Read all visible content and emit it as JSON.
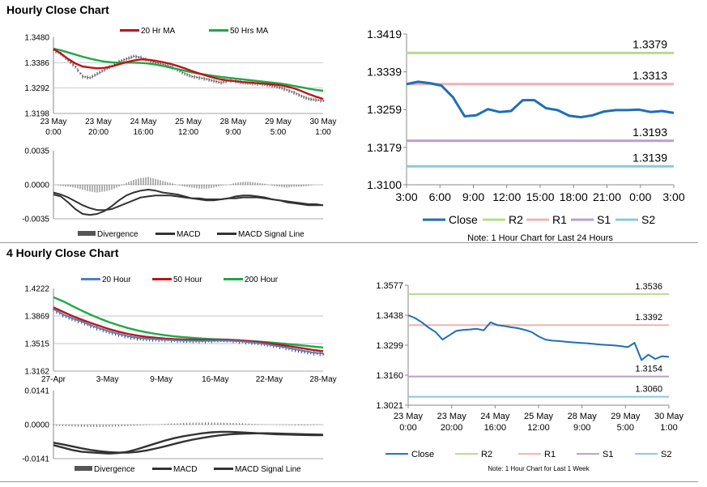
{
  "sections": {
    "hourly_title": "Hourly Close Chart",
    "four_hourly_title": "4 Hourly Close Chart"
  },
  "colors": {
    "close": "#1f6fb4",
    "ma_red": "#c0141b",
    "ma_green": "#1fa846",
    "ma_blue": "#4f81bd",
    "r2": "#b9d98c",
    "r1": "#eeb3b1",
    "s1": "#b5a2cc",
    "s2": "#8cc8dc",
    "divergence": "#555555",
    "grid": "#b0b0b0"
  },
  "chart_data": [
    {
      "id": "hourly_price",
      "type": "line",
      "title": "",
      "x_ticks": [
        "23 May\n0:00",
        "23 May\n20:00",
        "24 May\n16:00",
        "25 May\n12:00",
        "28 May\n9:00",
        "29 May\n5:00",
        "30 May\n1:00"
      ],
      "y_ticks": [
        "1.3480",
        "1.3386",
        "1.3292",
        "1.3198"
      ],
      "ylim": [
        1.3198,
        1.348
      ],
      "legend": [
        "20 Hr MA",
        "50 Hrs MA"
      ],
      "series": [
        {
          "name": "Close",
          "style": "hlc",
          "values": [
            1.3432,
            1.342,
            1.3395,
            1.337,
            1.3335,
            1.333,
            1.3345,
            1.336,
            1.3375,
            1.339,
            1.34,
            1.341,
            1.3405,
            1.3395,
            1.3385,
            1.338,
            1.3372,
            1.336,
            1.3345,
            1.3335,
            1.333,
            1.3325,
            1.3318,
            1.3312,
            1.332,
            1.3318,
            1.3312,
            1.331,
            1.3308,
            1.3305,
            1.33,
            1.3295,
            1.3285,
            1.3275,
            1.3262,
            1.3252,
            1.3248,
            1.3245
          ]
        },
        {
          "name": "20 Hr MA",
          "values": [
            1.3437,
            1.342,
            1.34,
            1.3383,
            1.3372,
            1.3368,
            1.3365,
            1.3367,
            1.3372,
            1.338,
            1.3388,
            1.3394,
            1.3398,
            1.3397,
            1.3393,
            1.3388,
            1.3382,
            1.3374,
            1.3365,
            1.3355,
            1.3346,
            1.3338,
            1.333,
            1.3324,
            1.332,
            1.3317,
            1.3314,
            1.3312,
            1.331,
            1.3308,
            1.3306,
            1.3303,
            1.3298,
            1.3291,
            1.3281,
            1.327,
            1.326,
            1.3252
          ]
        },
        {
          "name": "50 Hrs MA",
          "values": [
            1.3438,
            1.3432,
            1.3424,
            1.3416,
            1.3408,
            1.3401,
            1.3395,
            1.339,
            1.3387,
            1.3386,
            1.3386,
            1.3386,
            1.3385,
            1.3383,
            1.3379,
            1.3374,
            1.3368,
            1.3362,
            1.3356,
            1.335,
            1.3345,
            1.3341,
            1.3337,
            1.3333,
            1.333,
            1.3327,
            1.3324,
            1.3321,
            1.3318,
            1.3315,
            1.3312,
            1.3309,
            1.3305,
            1.33,
            1.3295,
            1.329,
            1.3285,
            1.3282
          ]
        }
      ]
    },
    {
      "id": "hourly_macd",
      "type": "line",
      "y_ticks": [
        "0.0035",
        "0.0000",
        "-0.0035"
      ],
      "ylim": [
        -0.0035,
        0.0035
      ],
      "legend": [
        "Divergence",
        "MACD",
        "MACD Signal Line"
      ],
      "series": [
        {
          "name": "Divergence",
          "values": [
            0.0,
            -0.0001,
            -0.0002,
            -0.0003,
            -0.0005,
            -0.0007,
            -0.0008,
            -0.0007,
            -0.0005,
            -0.0002,
            0.0002,
            0.0005,
            0.0007,
            0.0008,
            0.0006,
            0.0004,
            0.0002,
            0.0,
            -0.0002,
            -0.0003,
            -0.0004,
            -0.0004,
            -0.0003,
            -0.0001,
            0.0,
            0.0002,
            0.0003,
            0.0003,
            0.0002,
            0.0001,
            -0.0001,
            -0.0002,
            -0.0003,
            -0.0002,
            -0.0002,
            -0.0001,
            0.0,
            0.0
          ]
        },
        {
          "name": "MACD",
          "values": [
            -0.001,
            -0.0012,
            -0.0018,
            -0.0025,
            -0.003,
            -0.0031,
            -0.003,
            -0.0027,
            -0.0022,
            -0.0016,
            -0.0011,
            -0.0008,
            -0.0006,
            -0.0005,
            -0.0006,
            -0.0008,
            -0.0009,
            -0.001,
            -0.0012,
            -0.0014,
            -0.0015,
            -0.0016,
            -0.0016,
            -0.0015,
            -0.0014,
            -0.0012,
            -0.0011,
            -0.0011,
            -0.0012,
            -0.0013,
            -0.0015,
            -0.0016,
            -0.0018,
            -0.0019,
            -0.002,
            -0.0021,
            -0.0021,
            -0.0021
          ]
        },
        {
          "name": "MACD Signal Line",
          "values": [
            -0.0008,
            -0.001,
            -0.0013,
            -0.0017,
            -0.0021,
            -0.0024,
            -0.0026,
            -0.0026,
            -0.0025,
            -0.0022,
            -0.0019,
            -0.0016,
            -0.0013,
            -0.0012,
            -0.0011,
            -0.0011,
            -0.0011,
            -0.0012,
            -0.0013,
            -0.0014,
            -0.0014,
            -0.0015,
            -0.0015,
            -0.0015,
            -0.0014,
            -0.0014,
            -0.0013,
            -0.0013,
            -0.0013,
            -0.0014,
            -0.0015,
            -0.0016,
            -0.0017,
            -0.0018,
            -0.0019,
            -0.002,
            -0.002,
            -0.0021
          ]
        }
      ]
    },
    {
      "id": "hourly_pivot",
      "type": "line",
      "title": "",
      "x_ticks": [
        "3:00",
        "6:00",
        "9:00",
        "12:00",
        "15:00",
        "18:00",
        "21:00",
        "0:00",
        "3:00"
      ],
      "y_ticks": [
        "1.3419",
        "1.3339",
        "1.3259",
        "1.3179",
        "1.3100"
      ],
      "ylim": [
        1.31,
        1.3419
      ],
      "legend": [
        "Close",
        "R2",
        "R1",
        "S1",
        "S2"
      ],
      "levels": [
        {
          "name": "R2",
          "value": 1.3379,
          "label": "1.3379"
        },
        {
          "name": "R1",
          "value": 1.3313,
          "label": "1.3313"
        },
        {
          "name": "S1",
          "value": 1.3193,
          "label": "1.3193"
        },
        {
          "name": "S2",
          "value": 1.3139,
          "label": "1.3139"
        }
      ],
      "series": [
        {
          "name": "Close",
          "values": [
            1.3313,
            1.3318,
            1.3315,
            1.331,
            1.3285,
            1.3245,
            1.3247,
            1.326,
            1.3254,
            1.3256,
            1.3279,
            1.3279,
            1.3262,
            1.3258,
            1.3246,
            1.3243,
            1.3247,
            1.3255,
            1.3258,
            1.3258,
            1.3259,
            1.3254,
            1.3256,
            1.3252
          ]
        }
      ],
      "note": "Note: 1 Hour Chart for Last 24 Hours"
    },
    {
      "id": "four_hourly_price",
      "type": "line",
      "x_ticks": [
        "27-Apr",
        "3-May",
        "9-May",
        "16-May",
        "22-May",
        "28-May"
      ],
      "y_ticks": [
        "1.4222",
        "1.3869",
        "1.3515",
        "1.3162"
      ],
      "ylim": [
        1.3162,
        1.4222
      ],
      "legend": [
        "20 Hour",
        "50 Hour",
        "200 Hour"
      ],
      "series": [
        {
          "name": "Close",
          "style": "hlc",
          "values": [
            1.395,
            1.388,
            1.383,
            1.379,
            1.374,
            1.37,
            1.366,
            1.363,
            1.36,
            1.358,
            1.357,
            1.3565,
            1.356,
            1.3555,
            1.355,
            1.3548,
            1.3545,
            1.355,
            1.356,
            1.3555,
            1.354,
            1.353,
            1.352,
            1.35,
            1.348,
            1.346,
            1.343,
            1.341,
            1.339,
            1.338
          ]
        },
        {
          "name": "20 Hour",
          "values": [
            1.396,
            1.389,
            1.384,
            1.38,
            1.375,
            1.371,
            1.367,
            1.364,
            1.3612,
            1.3592,
            1.358,
            1.3572,
            1.3565,
            1.356,
            1.3555,
            1.3552,
            1.355,
            1.3552,
            1.3555,
            1.3552,
            1.3545,
            1.3535,
            1.3522,
            1.3505,
            1.3485,
            1.3465,
            1.344,
            1.342,
            1.34,
            1.339
          ]
        },
        {
          "name": "50 Hour",
          "values": [
            1.398,
            1.3925,
            1.387,
            1.3825,
            1.378,
            1.374,
            1.37,
            1.3668,
            1.364,
            1.3618,
            1.3602,
            1.359,
            1.358,
            1.3573,
            1.3568,
            1.3565,
            1.3563,
            1.3563,
            1.3564,
            1.3562,
            1.3556,
            1.3547,
            1.3536,
            1.3522,
            1.3506,
            1.3489,
            1.347,
            1.3451,
            1.3432,
            1.3418
          ]
        },
        {
          "name": "200 Hour",
          "values": [
            1.411,
            1.406,
            1.4,
            1.394,
            1.3885,
            1.3835,
            1.379,
            1.375,
            1.3715,
            1.3685,
            1.366,
            1.364,
            1.3622,
            1.3608,
            1.3597,
            1.3588,
            1.358,
            1.3574,
            1.3568,
            1.3562,
            1.3556,
            1.355,
            1.3542,
            1.3533,
            1.3523,
            1.3512,
            1.35,
            1.3488,
            1.3476,
            1.3465
          ]
        }
      ]
    },
    {
      "id": "four_hourly_macd",
      "type": "line",
      "y_ticks": [
        "0.0141",
        "0.0000",
        "-0.0141"
      ],
      "ylim": [
        -0.0141,
        0.0141
      ],
      "legend": [
        "Divergence",
        "MACD",
        "MACD Signal Line"
      ],
      "series": [
        {
          "name": "Divergence",
          "values": [
            -0.0004,
            -0.0006,
            -0.0008,
            -0.0009,
            -0.001,
            -0.001,
            -0.0009,
            -0.0008,
            -0.0006,
            -0.0004,
            -0.0002,
            0.0,
            0.0003,
            0.0005,
            0.0007,
            0.0008,
            0.0009,
            0.0009,
            0.0008,
            0.0007,
            0.0006,
            0.0004,
            0.0002,
            0.0,
            -0.0001,
            -0.0002,
            -0.0003,
            -0.0003,
            -0.0002,
            -0.0001
          ]
        },
        {
          "name": "MACD",
          "values": [
            -0.0085,
            -0.0095,
            -0.0105,
            -0.0112,
            -0.0115,
            -0.0118,
            -0.012,
            -0.0118,
            -0.0112,
            -0.0102,
            -0.009,
            -0.0078,
            -0.0066,
            -0.0056,
            -0.0048,
            -0.0042,
            -0.0036,
            -0.0032,
            -0.003,
            -0.003,
            -0.0032,
            -0.0034,
            -0.0036,
            -0.0038,
            -0.004,
            -0.0041,
            -0.0042,
            -0.0043,
            -0.0044,
            -0.0044
          ]
        },
        {
          "name": "MACD Signal Line",
          "values": [
            -0.0075,
            -0.0082,
            -0.009,
            -0.0098,
            -0.0105,
            -0.011,
            -0.0114,
            -0.0116,
            -0.0116,
            -0.0113,
            -0.0107,
            -0.0099,
            -0.009,
            -0.008,
            -0.007,
            -0.0062,
            -0.0055,
            -0.0049,
            -0.0044,
            -0.004,
            -0.0038,
            -0.0037,
            -0.0036,
            -0.0036,
            -0.0037,
            -0.0038,
            -0.0039,
            -0.004,
            -0.0041,
            -0.0042
          ]
        }
      ]
    },
    {
      "id": "four_hourly_pivot",
      "type": "line",
      "x_ticks": [
        "23 May\n0:00",
        "23 May\n20:00",
        "24 May\n16:00",
        "25 May\n12:00",
        "28 May\n9:00",
        "29 May\n5:00",
        "30 May\n1:00"
      ],
      "y_ticks": [
        "1.3577",
        "1.3438",
        "1.3299",
        "1.3160",
        "1.3021"
      ],
      "ylim": [
        1.3021,
        1.3577
      ],
      "legend": [
        "Close",
        "R2",
        "R1",
        "S1",
        "S2"
      ],
      "levels": [
        {
          "name": "R2",
          "value": 1.3536,
          "label": "1.3536"
        },
        {
          "name": "R1",
          "value": 1.3392,
          "label": "1.3392"
        },
        {
          "name": "S1",
          "value": 1.3154,
          "label": "1.3154"
        },
        {
          "name": "S2",
          "value": 1.306,
          "label": "1.3060"
        }
      ],
      "series": [
        {
          "name": "Close",
          "values": [
            1.3438,
            1.3425,
            1.3405,
            1.338,
            1.336,
            1.3325,
            1.3345,
            1.3365,
            1.337,
            1.3372,
            1.3375,
            1.3368,
            1.3405,
            1.3392,
            1.3388,
            1.3382,
            1.3378,
            1.337,
            1.336,
            1.334,
            1.3325,
            1.332,
            1.3318,
            1.3315,
            1.3312,
            1.331,
            1.3308,
            1.3305,
            1.3302,
            1.33,
            1.3298,
            1.3295,
            1.329,
            1.331,
            1.323,
            1.3255,
            1.3235,
            1.3248,
            1.3245
          ]
        }
      ],
      "note": "Note: 1 Hour Chart for Last 1 Week"
    }
  ]
}
